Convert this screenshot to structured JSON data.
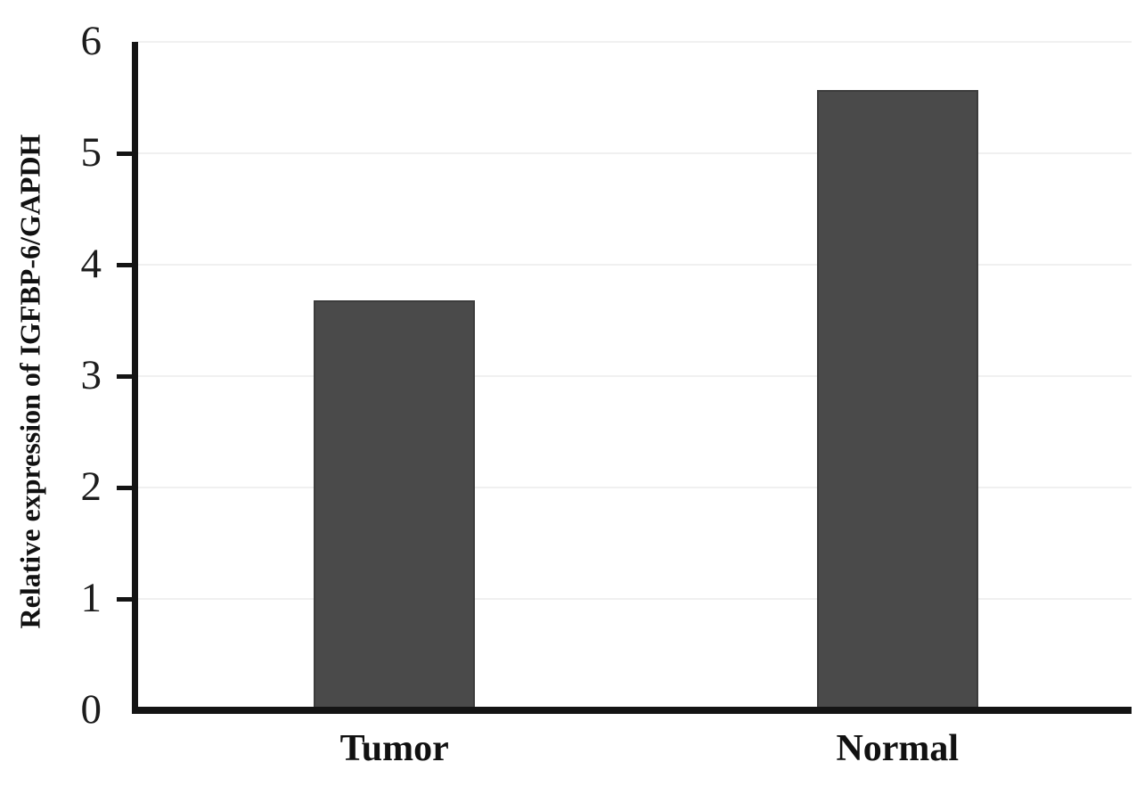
{
  "chart_data": {
    "type": "bar",
    "categories": [
      "Tumor",
      "Normal"
    ],
    "values": [
      3.68,
      5.57
    ],
    "title": "",
    "xlabel": "",
    "ylabel": "Relative expression of IGFBP-6/GAPDH",
    "ylim": [
      0,
      6
    ],
    "yticks": [
      0,
      1,
      2,
      3,
      4,
      5,
      6
    ],
    "grid": true,
    "legend": false,
    "bar_color": "#4a4a4a",
    "bar_edge_color": "#3c3c3c",
    "axis_color": "#141414",
    "gridline_color": "#f0f0f0",
    "text_color": "#111111",
    "background": "#ffffff"
  }
}
